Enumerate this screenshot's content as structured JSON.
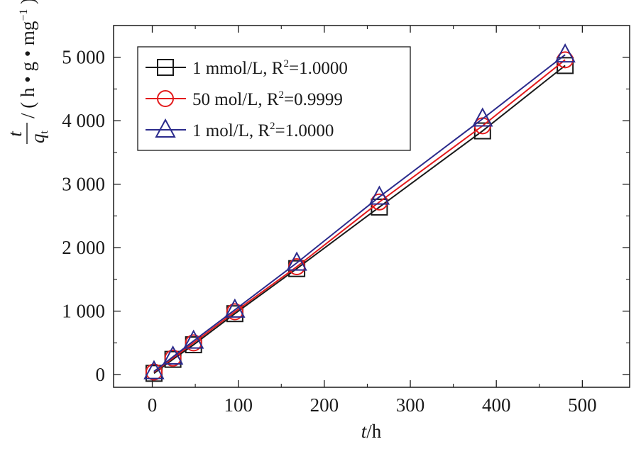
{
  "chart_data": {
    "type": "line",
    "title": "",
    "xlabel_italic": "t",
    "xlabel_unit": "/h",
    "ylabel_num": "t",
    "ylabel_den": "q",
    "ylabel_sub": "t",
    "ylabel_unit": "/ ( h • g • mg",
    "ylabel_sup": "−1",
    "ylabel_close": " )",
    "xlim": [
      -45,
      555
    ],
    "ylim": [
      -200,
      5500
    ],
    "grid": false,
    "legend_position": "top-left",
    "xticks": [
      0,
      100,
      200,
      300,
      400,
      500
    ],
    "xtick_labels": [
      "0",
      "100",
      "200",
      "300",
      "400",
      "500"
    ],
    "yticks": [
      0,
      1000,
      2000,
      3000,
      4000,
      5000
    ],
    "ytick_labels": [
      "0",
      "1 000",
      "2 000",
      "3 000",
      "4 000",
      "5 000"
    ],
    "x": [
      2,
      24,
      48,
      96,
      168,
      264,
      384,
      480
    ],
    "series": [
      {
        "name": "1 mmol/L, R",
        "name_sup": "2",
        "name_tail": "=1.0000",
        "marker": "square",
        "color": "#1a1a1a",
        "values": [
          20,
          240,
          470,
          960,
          1670,
          2640,
          3840,
          4870
        ]
      },
      {
        "name": "50 mol/L, R",
        "name_sup": "2",
        "name_tail": "=0.9999",
        "marker": "circle",
        "color": "#e31a1c",
        "values": [
          40,
          260,
          500,
          990,
          1700,
          2720,
          3920,
          4960
        ]
      },
      {
        "name": "1 mol/L, R",
        "name_sup": "2",
        "name_tail": "=1.0000",
        "marker": "triangle",
        "color": "#2b2b8c",
        "values": [
          50,
          280,
          530,
          1020,
          1760,
          2800,
          4030,
          5040
        ]
      }
    ]
  }
}
